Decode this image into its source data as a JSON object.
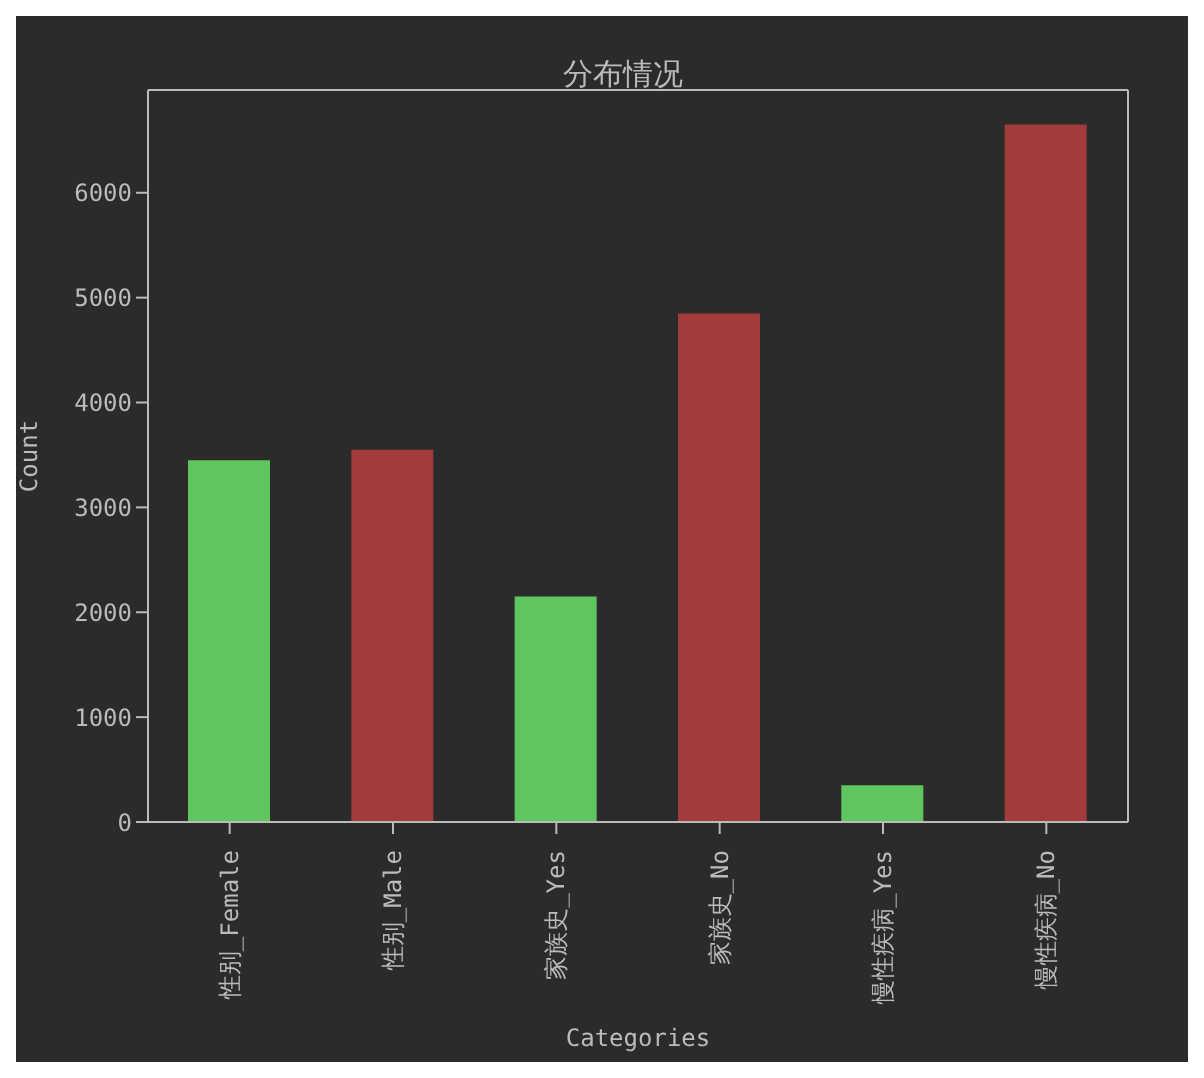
{
  "chart_data": {
    "type": "bar",
    "title": "分布情况",
    "xlabel": "Categories",
    "ylabel": "Count",
    "categories": [
      "性别_Female",
      "性别_Male",
      "家族史_Yes",
      "家族史_No",
      "慢性疾病_Yes",
      "慢性疾病_No"
    ],
    "values": [
      3450,
      3550,
      2150,
      4850,
      350,
      6650
    ],
    "colors": [
      "#5fc65f",
      "#a33b3b",
      "#5fc65f",
      "#a33b3b",
      "#5fc65f",
      "#a33b3b"
    ],
    "ylim": [
      0,
      6980
    ],
    "yticks": [
      0,
      1000,
      2000,
      3000,
      4000,
      5000,
      6000
    ]
  }
}
